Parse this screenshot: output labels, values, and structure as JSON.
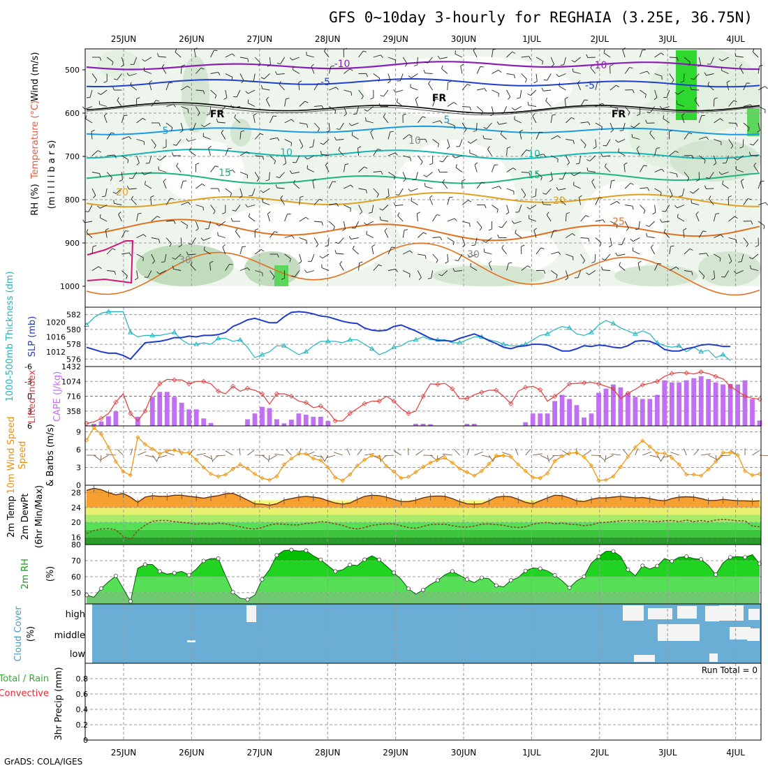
{
  "title": "GFS 0~10day 3-hourly for REGHAIA (3.25E, 36.75N)",
  "footer": "GrADS: COLA/IGES",
  "dates": [
    "25JUN",
    "26JUN",
    "27JUN",
    "28JUN",
    "29JUN",
    "30JUN",
    "1JUL",
    "2JUL",
    "3JUL",
    "4JUL"
  ],
  "colors": {
    "rh_fill": "#3c3",
    "temp_label": "#e65a3c",
    "wind_label": "#000",
    "thickness": "#1fb4c0",
    "slp": "#1e3cc8",
    "lifted": "#e23c3c",
    "cape": "#c070f0",
    "wind10": "#f09000",
    "t2m": "#d97a00",
    "dewpt": "#8a4b2a",
    "rh2m": "#1a9a1a",
    "cloud": "#6aaed6",
    "cloud_white": "#f4f4f4",
    "precip_total": "#3a3",
    "precip_conv": "#e23"
  },
  "chart_data": [
    {
      "panel": "profile",
      "type": "heatmap",
      "ylabels": [
        "RH (%)",
        "Temperature (°C)",
        "Wind (m/s)",
        "(m i l l i b a r s)"
      ],
      "y_ticks": [
        500,
        600,
        700,
        800,
        900,
        1000
      ],
      "contour_labels": [
        "-10",
        "-10",
        "-5",
        "-5",
        "FR",
        "FR",
        "FR",
        "5",
        "5",
        "10",
        "10",
        "15",
        "15",
        "20",
        "20",
        "25",
        "10",
        "30",
        "30"
      ]
    },
    {
      "panel": "pressure",
      "type": "line",
      "ylabels": [
        "1000-500mb Thickness (dm)",
        "SLP (mb)"
      ],
      "left_ticks": [
        576,
        578,
        580,
        582
      ],
      "right_ticks": [
        1012,
        1016,
        1020
      ],
      "ylim_thickness": [
        575,
        583
      ],
      "ylim_slp": [
        1008,
        1024
      ],
      "series": [
        {
          "name": "1000-500mb Thickness (dm)",
          "values": [
            580.6,
            581.6,
            582.2,
            582.4,
            582.4,
            582.4,
            579.6,
            579.0,
            579.2,
            579.2,
            579.2,
            579.4,
            579.6,
            578.6,
            578.0,
            578.0,
            578.2,
            578.0,
            578.8,
            578.8,
            578.4,
            578.6,
            577.6,
            576.2,
            576.6,
            577.0,
            577.8,
            577.8,
            577.2,
            576.6,
            577.0,
            577.8,
            578.4,
            578.4,
            578.4,
            578.2,
            578.6,
            578.6,
            578.0,
            577.4,
            576.6,
            577.0,
            577.6,
            577.8,
            578.4,
            578.6,
            579.0,
            578.6,
            578.6,
            578.6,
            578.2,
            578.2,
            578.6,
            579.0,
            579.0,
            578.6,
            578.4,
            578.0,
            577.8,
            577.8,
            578.0,
            578.6,
            579.2,
            579.4,
            580.0,
            580.4,
            580.2,
            579.4,
            579.2,
            579.6,
            580.6,
            581.2,
            580.8,
            580.2,
            579.8,
            579.4,
            579.8,
            579.4,
            578.2,
            577.8,
            577.6,
            577.8,
            577.0,
            577.6,
            577.0,
            577.2,
            576.2,
            576.6,
            575.8
          ]
        },
        {
          "name": "SLP (mb)",
          "values": [
            1013.2,
            1012.6,
            1012.0,
            1011.6,
            1011.6,
            1011.0,
            1010.0,
            1012.2,
            1014.4,
            1014.6,
            1014.8,
            1015.2,
            1015.8,
            1015.8,
            1016.2,
            1016.0,
            1016.4,
            1016.4,
            1016.6,
            1017.2,
            1018.8,
            1019.6,
            1020.6,
            1021.0,
            1020.4,
            1019.8,
            1019.8,
            1021.4,
            1022.6,
            1022.8,
            1022.6,
            1022.2,
            1021.6,
            1021.4,
            1020.8,
            1020.2,
            1019.8,
            1019.6,
            1018.4,
            1017.8,
            1017.6,
            1017.8,
            1018.8,
            1019.2,
            1018.4,
            1017.6,
            1016.6,
            1015.6,
            1015.0,
            1015.0,
            1014.8,
            1015.6,
            1016.2,
            1016.8,
            1016.0,
            1015.0,
            1014.2,
            1013.2,
            1012.8,
            1013.4,
            1013.6,
            1014.0,
            1014.0,
            1013.8,
            1013.0,
            1012.2,
            1012.2,
            1012.8,
            1013.6,
            1013.4,
            1013.8,
            1013.6,
            1013.2,
            1013.0,
            1013.6,
            1014.8,
            1015.0,
            1014.8,
            1014.0,
            1012.6,
            1012.2,
            1012.2,
            1012.8,
            1013.2,
            1013.8,
            1014.0,
            1013.8,
            1013.4,
            1013.4
          ]
        }
      ]
    },
    {
      "panel": "instability",
      "type": "bar",
      "ylabels": [
        "Lifted Index",
        "CAPE (J/kg)"
      ],
      "left_ticks": [
        "-6",
        "-3",
        "0",
        "3",
        "6"
      ],
      "right_ticks": [
        "1432",
        "1074",
        "716",
        "358"
      ],
      "ylim_cape": [
        0,
        1432
      ],
      "ylim_lifted": [
        6,
        -6
      ],
      "series": [
        {
          "name": "CAPE (J/kg)",
          "values": [
            0,
            50,
            110,
            230,
            350,
            0,
            0,
            220,
            0,
            700,
            820,
            820,
            700,
            560,
            400,
            400,
            180,
            70,
            0,
            0,
            0,
            0,
            160,
            300,
            460,
            430,
            160,
            60,
            150,
            300,
            270,
            220,
            220,
            120,
            0,
            0,
            0,
            0,
            0,
            0,
            0,
            0,
            0,
            0,
            0,
            50,
            50,
            40,
            0,
            0,
            0,
            0,
            50,
            50,
            0,
            0,
            0,
            0,
            0,
            0,
            90,
            300,
            300,
            300,
            600,
            750,
            650,
            500,
            200,
            300,
            800,
            900,
            1000,
            930,
            800,
            700,
            650,
            650,
            750,
            1100,
            1050,
            1050,
            1100,
            1150,
            1200,
            1130,
            1050,
            1000,
            1010,
            1000,
            1100,
            650,
            130
          ]
        },
        {
          "name": "Lifted Index",
          "values": [
            5.5,
            5.2,
            4.5,
            3.5,
            1.2,
            -0.5,
            3.5,
            5.0,
            3.0,
            -0.5,
            -2.5,
            -3.4,
            -3.3,
            -3.3,
            -2.5,
            -3.0,
            -3.0,
            -2.5,
            -1.0,
            -0.5,
            -2.0,
            -1.0,
            -1.6,
            -1.2,
            -0.5,
            1.6,
            -0.5,
            -0.5,
            0.0,
            1.0,
            1.3,
            2.3,
            2.0,
            3.0,
            5.0,
            5.0,
            3.5,
            2.5,
            1.5,
            1.0,
            1.0,
            0.0,
            1.0,
            2.5,
            3.5,
            3.0,
            0.0,
            -2.5,
            -2.4,
            -2.6,
            -1.5,
            0.5,
            0.5,
            -0.3,
            -0.8,
            -1.2,
            -1.2,
            0.0,
            1.5,
            -1.0,
            -1.8,
            -2.0,
            -1.3,
            1.0,
            0.0,
            -1.1,
            -2.5,
            -2.6,
            -2.7,
            -2.8,
            -2.5,
            -2.0,
            -1.5,
            0.5,
            -0.6,
            -1.4,
            -2.3,
            -2.6,
            -3.0,
            -4.0,
            -4.6,
            -4.8,
            -4.7,
            -4.5,
            -4.9,
            -4.6,
            -4.0,
            -3.5,
            -2.0,
            -1.0,
            0.0,
            0.4,
            0.6
          ]
        }
      ]
    },
    {
      "panel": "wind10m",
      "type": "line",
      "ylabels": [
        "10m Wind Speed",
        "& Barbs (m/s)"
      ],
      "left_ticks": [
        0,
        3,
        6,
        9
      ],
      "ylim": [
        0,
        10
      ],
      "series": [
        {
          "name": "10m Wind Speed",
          "values": [
            7.6,
            9.7,
            8.6,
            6.4,
            4.0,
            2.3,
            1.7,
            8.1,
            6.9,
            6.1,
            5.3,
            5.8,
            5.9,
            5.5,
            5.5,
            4.3,
            3.0,
            1.9,
            1.5,
            1.8,
            2.7,
            3.5,
            2.8,
            1.9,
            1.2,
            0.9,
            1.5,
            3.5,
            4.5,
            5.3,
            5.3,
            4.5,
            4.2,
            3.0,
            1.3,
            0.8,
            1.8,
            3.3,
            4.3,
            5.0,
            4.8,
            3.2,
            2.3,
            1.2,
            1.4,
            2.2,
            3.1,
            3.8,
            4.3,
            4.6,
            3.8,
            2.8,
            2.2,
            1.6,
            2.4,
            3.6,
            5.0,
            5.0,
            4.8,
            3.5,
            2.4,
            1.3,
            1.2,
            2.0,
            4.1,
            4.9,
            5.4,
            5.5,
            4.8,
            3.3,
            0.8,
            0.9,
            1.5,
            3.1,
            4.8,
            6.4,
            7.5,
            6.5,
            5.4,
            5.4,
            4.6,
            3.5,
            1.8,
            1.8,
            1.6,
            2.7,
            4.0,
            5.5,
            5.5,
            5.1,
            2.4,
            1.7,
            1.9
          ]
        }
      ]
    },
    {
      "panel": "temp2m",
      "type": "area",
      "ylabels": [
        "2m Temp",
        "2m DewPt",
        "(6hr Min/Max)"
      ],
      "left_ticks": [
        16,
        20,
        24,
        28
      ],
      "ylim": [
        14,
        30
      ],
      "series": [
        {
          "name": "2m Temp",
          "values": [
            28.6,
            29.2,
            28.8,
            28.0,
            27.4,
            27.8,
            26.8,
            25.4,
            26.8,
            27.2,
            27.0,
            27.0,
            27.3,
            27.3,
            27.0,
            26.8,
            26.5,
            26.9,
            27.2,
            27.7,
            27.8,
            27.0,
            26.0,
            25.0,
            24.9,
            24.6,
            25.0,
            26.0,
            26.4,
            26.8,
            27.0,
            26.8,
            26.5,
            25.8,
            25.2,
            24.9,
            25.2,
            26.2,
            27.0,
            27.3,
            27.2,
            26.8,
            26.2,
            25.6,
            25.6,
            26.0,
            26.6,
            27.0,
            27.1,
            27.0,
            26.4,
            25.6,
            25.0,
            24.9,
            25.0,
            25.8,
            26.8,
            27.0,
            26.9,
            26.2,
            25.4,
            25.0,
            25.8,
            26.6,
            27.3,
            27.2,
            26.6,
            25.8,
            25.6,
            26.2,
            26.6,
            26.6,
            26.8,
            27.0,
            26.8,
            26.6,
            26.7,
            26.4,
            26.0,
            25.8,
            26.4,
            26.8,
            26.9,
            26.8,
            26.4,
            25.9,
            25.9,
            26.2,
            26.0,
            25.8,
            25.8,
            25.7,
            25.8
          ]
        },
        {
          "name": "2m DewPt",
          "values": [
            17.0,
            17.8,
            18.2,
            18.3,
            18.0,
            16.2,
            15.4,
            17.8,
            19.2,
            20.3,
            20.5,
            20.5,
            20.2,
            20.0,
            19.8,
            19.5,
            19.7,
            19.5,
            19.8,
            19.6,
            19.2,
            18.8,
            18.4,
            18.2,
            18.6,
            19.3,
            19.6,
            19.5,
            19.3,
            19.3,
            19.7,
            19.8,
            20.2,
            20.0,
            19.6,
            19.2,
            18.5,
            18.2,
            18.6,
            19.2,
            19.4,
            19.6,
            19.6,
            19.1,
            18.6,
            18.4,
            18.9,
            19.4,
            19.5,
            19.5,
            19.1,
            18.8,
            18.7,
            19.0,
            19.5,
            19.6,
            19.4,
            19.2,
            18.8,
            18.6,
            18.8,
            19.5,
            19.8,
            20.0,
            19.6,
            19.8,
            19.5,
            19.4,
            19.1,
            19.3,
            19.9,
            20.0,
            20.2,
            20.4,
            20.5,
            20.4,
            20.5,
            20.3,
            20.2,
            20.4,
            20.5,
            20.2,
            20.6,
            20.2,
            20.5,
            20.2,
            20.6,
            20.8,
            20.6,
            20.4,
            20.4,
            19.0,
            18.8
          ]
        }
      ]
    },
    {
      "panel": "rh2m",
      "type": "area",
      "ylabels": [
        "2m RH",
        "(%)"
      ],
      "left_ticks": [
        50,
        60,
        70,
        80
      ],
      "ylim": [
        43,
        80
      ],
      "series": [
        {
          "name": "2m RH",
          "values": [
            48.5,
            47.2,
            52.6,
            56.8,
            60.5,
            52.7,
            44.6,
            65.2,
            67.6,
            67.6,
            63.3,
            61.6,
            62.3,
            63.3,
            61.0,
            64.7,
            69.8,
            71.3,
            71.3,
            60.5,
            50.3,
            46.6,
            45.8,
            48.5,
            58.3,
            64.4,
            73.4,
            76.3,
            76.7,
            75.9,
            76.3,
            73.0,
            70.6,
            66.8,
            63.3,
            64.3,
            67.4,
            66.9,
            70.6,
            73.0,
            70.6,
            66.5,
            62.5,
            58.3,
            52.5,
            49.1,
            51.7,
            55.1,
            57.7,
            61.2,
            63.3,
            60.8,
            58.3,
            56.3,
            59.3,
            58.7,
            54.5,
            53.6,
            57.7,
            59.4,
            63.6,
            65.4,
            65.0,
            63.6,
            60.9,
            57.4,
            53.1,
            57.4,
            60.0,
            68.5,
            72.5,
            75.8,
            75.8,
            72.7,
            64.4,
            60.5,
            66.8,
            64.7,
            66.7,
            71.3,
            69.7,
            72.1,
            72.5,
            71.3,
            70.8,
            67.0,
            61.3,
            68.5,
            72.1,
            72.5,
            72.1,
            73.7,
            68.1
          ]
        }
      ]
    },
    {
      "panel": "cloud",
      "type": "heatmap",
      "ylabels": [
        "Cloud Cover",
        "(%)"
      ],
      "row_labels": [
        "high",
        "middle",
        "low"
      ]
    },
    {
      "panel": "precip",
      "type": "bar",
      "ylabels": [
        "Total / Rain",
        "Convective",
        "3hr Precip (mm)"
      ],
      "left_ticks": [
        "0",
        "0.2",
        "0.4",
        "0.6",
        "0.8"
      ],
      "ylim": [
        0,
        1
      ],
      "run_total": "Run Total = 0",
      "series": [
        {
          "name": "3hr Precip (mm)",
          "values": []
        }
      ]
    }
  ]
}
